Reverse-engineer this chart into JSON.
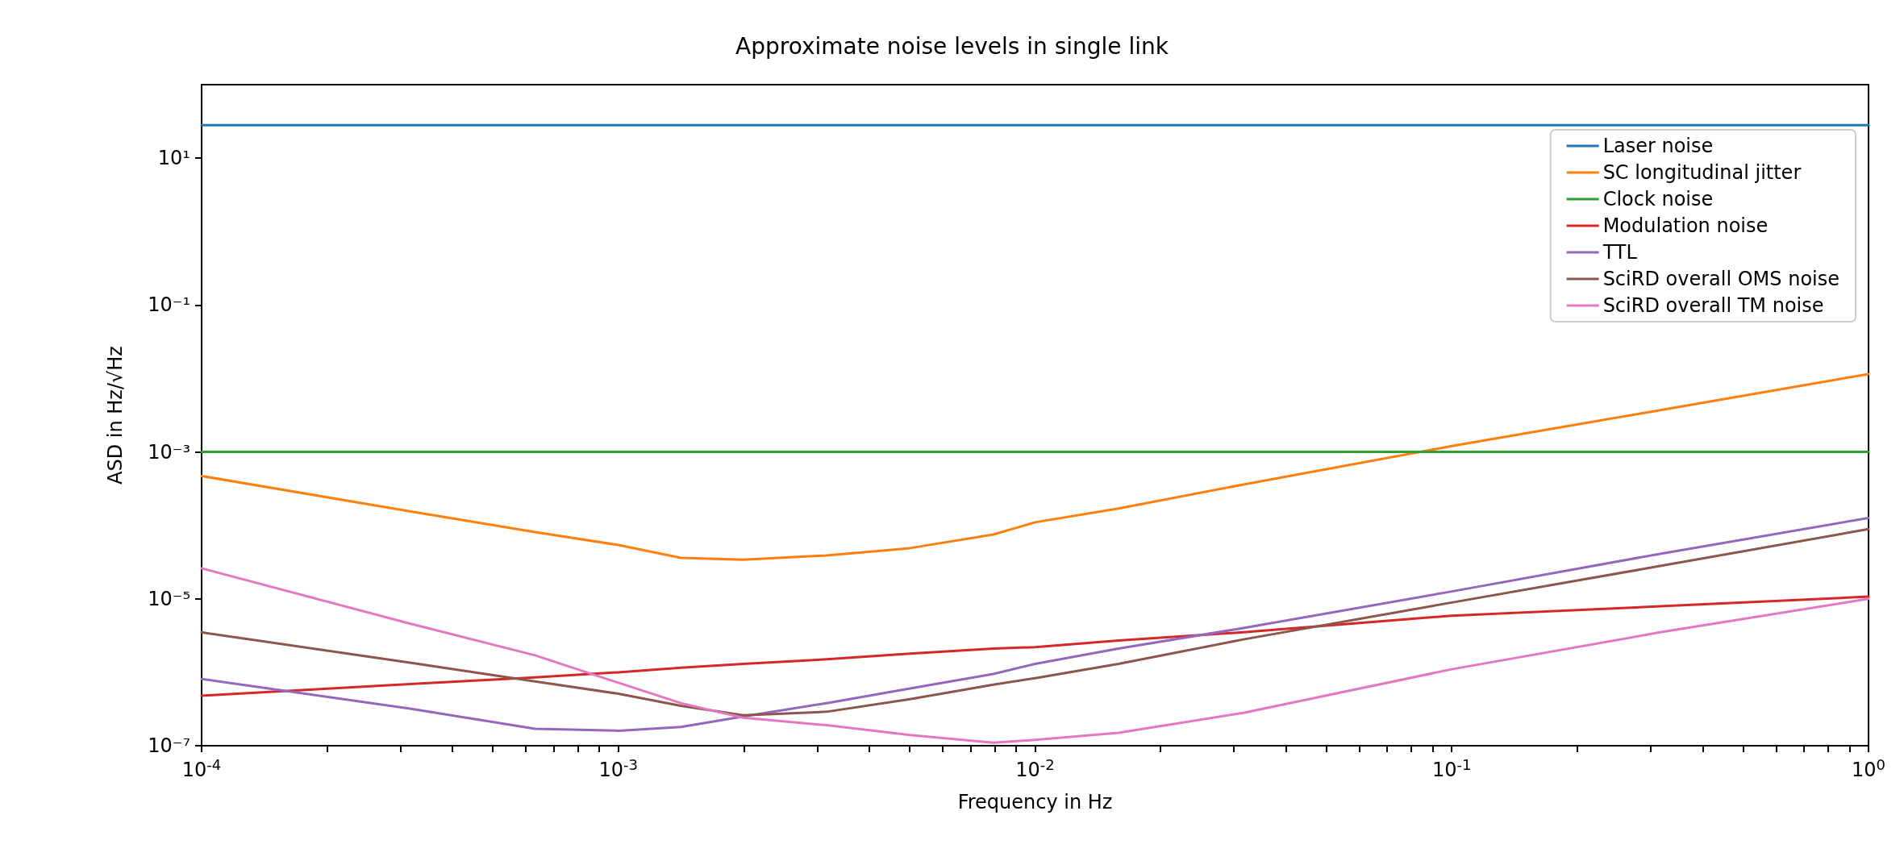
{
  "chart_data": {
    "type": "line",
    "title": "Approximate noise levels in single link",
    "xlabel": "Frequency in Hz",
    "ylabel": "ASD in Hz/√Hz",
    "log": "xy",
    "grid": false,
    "legend": "top right",
    "marker": "none",
    "line_style": "solid",
    "xlim": [
      0.0001,
      1
    ],
    "ylim": [
      1e-07,
      100
    ],
    "xticks": [
      {
        "value": 0.0001,
        "label": "10$^{-4}$"
      },
      {
        "value": 0.0002,
        "label": null
      },
      {
        "value": 0.0003,
        "label": null
      },
      {
        "value": 0.0004,
        "label": null
      },
      {
        "value": 0.0005,
        "label": null
      },
      {
        "value": 0.0006,
        "label": null
      },
      {
        "value": 0.0007,
        "label": null
      },
      {
        "value": 0.0008,
        "label": null
      },
      {
        "value": 0.0009,
        "label": null
      },
      {
        "value": 0.001,
        "label": "10$^{-3}$"
      },
      {
        "value": 0.002,
        "label": null
      },
      {
        "value": 0.003,
        "label": null
      },
      {
        "value": 0.004,
        "label": null
      },
      {
        "value": 0.005,
        "label": null
      },
      {
        "value": 0.006,
        "label": null
      },
      {
        "value": 0.007,
        "label": null
      },
      {
        "value": 0.008,
        "label": null
      },
      {
        "value": 0.009,
        "label": null
      },
      {
        "value": 0.01,
        "label": "10$^{-2}$"
      },
      {
        "value": 0.02,
        "label": null
      },
      {
        "value": 0.03,
        "label": null
      },
      {
        "value": 0.04,
        "label": null
      },
      {
        "value": 0.05,
        "label": null
      },
      {
        "value": 0.06,
        "label": null
      },
      {
        "value": 0.07,
        "label": null
      },
      {
        "value": 0.08,
        "label": null
      },
      {
        "value": 0.09,
        "label": null
      },
      {
        "value": 0.1,
        "label": "10$^{-1}$"
      },
      {
        "value": 0.2,
        "label": null
      },
      {
        "value": 0.3,
        "label": null
      },
      {
        "value": 0.4,
        "label": null
      },
      {
        "value": 0.5,
        "label": null
      },
      {
        "value": 0.6,
        "label": null
      },
      {
        "value": 0.7,
        "label": null
      },
      {
        "value": 0.8,
        "label": null
      },
      {
        "value": 0.9,
        "label": null
      },
      {
        "value": 1,
        "label": "10$^{0}$"
      }
    ],
    "yticks": [
      {
        "value": 1e-07,
        "label": "10⁻⁷"
      },
      {
        "value": 1e-05,
        "label": "10⁻⁵"
      },
      {
        "value": 0.001,
        "label": "10⁻³"
      },
      {
        "value": 0.1,
        "label": "10⁻¹"
      },
      {
        "value": 10,
        "label": "10¹"
      }
    ],
    "x": [
      0.0001,
      0.0003162,
      0.000631,
      0.001,
      0.001413,
      0.001995,
      0.003162,
      0.005012,
      0.007943,
      0.01,
      0.01585,
      0.03162,
      0.1,
      0.3162,
      1
    ],
    "series": [
      {
        "name": "Laser noise",
        "color": "#1f77b4",
        "values": [
          28,
          28,
          28,
          28,
          28,
          28,
          28,
          28,
          28,
          28,
          28,
          28,
          28,
          28,
          28
        ]
      },
      {
        "name": "SC longitudinal jitter",
        "color": "#ff7f0e",
        "values": [
          0.00047,
          0.000155,
          8.1e-05,
          5.4e-05,
          3.6e-05,
          3.4e-05,
          3.9e-05,
          4.9e-05,
          7.5e-05,
          0.00011,
          0.00017,
          0.00036,
          0.0012,
          0.0037,
          0.0115
        ]
      },
      {
        "name": "Clock noise",
        "color": "#2ca02c",
        "values": [
          0.001,
          0.001,
          0.001,
          0.001,
          0.001,
          0.001,
          0.001,
          0.001,
          0.001,
          0.001,
          0.001,
          0.001,
          0.001,
          0.001,
          0.001
        ]
      },
      {
        "name": "Modulation noise",
        "color": "#d62728",
        "values": [
          4.8e-07,
          6.9e-07,
          8.5e-07,
          1e-06,
          1.15e-06,
          1.3e-06,
          1.5e-06,
          1.8e-06,
          2.1e-06,
          2.2e-06,
          2.7e-06,
          3.5e-06,
          5.9e-06,
          7.9e-06,
          1.07e-05
        ]
      },
      {
        "name": "TTL",
        "color": "#9467bd",
        "values": [
          8.1e-07,
          3.2e-07,
          1.7e-07,
          1.6e-07,
          1.8e-07,
          2.5e-07,
          3.8e-07,
          6e-07,
          9.5e-07,
          1.3e-06,
          2.1e-06,
          4e-06,
          1.26e-05,
          4.1e-05,
          0.000126
        ]
      },
      {
        "name": "SciRD overall OMS noise",
        "color": "#8c564b",
        "values": [
          3.5e-06,
          1.35e-06,
          7.5e-07,
          5.1e-07,
          3.5e-07,
          2.6e-07,
          2.9e-07,
          4.3e-07,
          6.8e-07,
          8.3e-07,
          1.3e-06,
          2.8e-06,
          8.9e-06,
          2.8e-05,
          8.9e-05
        ]
      },
      {
        "name": "SciRD overall TM noise",
        "color": "#e377c2",
        "values": [
          2.6e-05,
          4.6e-06,
          1.7e-06,
          7.2e-07,
          3.8e-07,
          2.4e-07,
          1.9e-07,
          1.4e-07,
          1.1e-07,
          1.2e-07,
          1.5e-07,
          2.8e-07,
          1.1e-06,
          3.5e-06,
          1e-05
        ]
      }
    ]
  }
}
